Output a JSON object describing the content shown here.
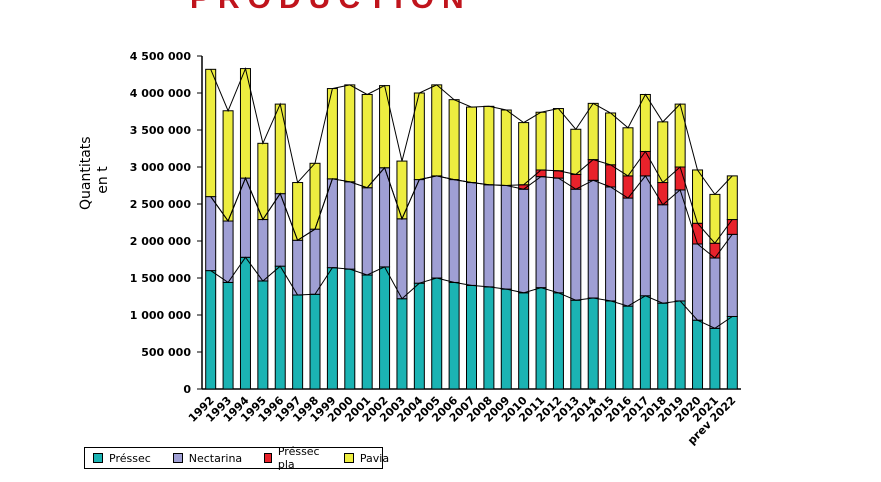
{
  "title_fragment": "PRODUCTION",
  "ylabel": "Quantitats\nen t",
  "colors": {
    "Préssec": "#1bb3b3",
    "Nectarina": "#9f9fd4",
    "Préssec pla": "#e8222b",
    "Pavia": "#eded40"
  },
  "chart_data": {
    "type": "bar",
    "stacked": true,
    "categories": [
      "1992",
      "1993",
      "1994",
      "1995",
      "1996",
      "1997",
      "1998",
      "1999",
      "2000",
      "2001",
      "2002",
      "2003",
      "2004",
      "2005",
      "2006",
      "2007",
      "2008",
      "2009",
      "2010",
      "2011",
      "2012",
      "2013",
      "2014",
      "2015",
      "2016",
      "2017",
      "2018",
      "2019",
      "2020",
      "2021",
      "prev 2022"
    ],
    "ylim": [
      0,
      4500000
    ],
    "yticks": [
      0,
      500000,
      1000000,
      1500000,
      2000000,
      2500000,
      3000000,
      3500000,
      4000000,
      4500000
    ],
    "ytick_labels": [
      "0",
      "500 000",
      "1 000 000",
      "1 500 000",
      "2 000 000",
      "2 500 000",
      "3 000 000",
      "3 500 000",
      "4 000 000",
      "4 500 000"
    ],
    "series": [
      {
        "name": "Préssec",
        "values": [
          1600000,
          1440000,
          1780000,
          1460000,
          1660000,
          1270000,
          1280000,
          1640000,
          1620000,
          1540000,
          1650000,
          1220000,
          1430000,
          1500000,
          1440000,
          1400000,
          1380000,
          1350000,
          1300000,
          1370000,
          1300000,
          1200000,
          1230000,
          1190000,
          1120000,
          1260000,
          1160000,
          1190000,
          930000,
          820000,
          980000
        ]
      },
      {
        "name": "Nectarina",
        "values": [
          1000000,
          830000,
          1070000,
          830000,
          980000,
          740000,
          880000,
          1200000,
          1180000,
          1180000,
          1340000,
          1080000,
          1400000,
          1380000,
          1390000,
          1390000,
          1380000,
          1400000,
          1400000,
          1500000,
          1550000,
          1500000,
          1590000,
          1540000,
          1460000,
          1620000,
          1330000,
          1500000,
          1030000,
          950000,
          1110000
        ]
      },
      {
        "name": "Préssec pla",
        "values": [
          0,
          0,
          0,
          0,
          0,
          0,
          0,
          0,
          0,
          0,
          0,
          0,
          0,
          0,
          0,
          0,
          0,
          0,
          60000,
          90000,
          100000,
          200000,
          280000,
          300000,
          300000,
          330000,
          300000,
          310000,
          280000,
          200000,
          200000
        ]
      },
      {
        "name": "Pavia",
        "values": [
          1720000,
          1490000,
          1480000,
          1030000,
          1210000,
          780000,
          890000,
          1220000,
          1310000,
          1260000,
          1110000,
          780000,
          1170000,
          1230000,
          1080000,
          1020000,
          1060000,
          1020000,
          840000,
          780000,
          840000,
          610000,
          760000,
          700000,
          650000,
          770000,
          820000,
          850000,
          720000,
          660000,
          590000
        ]
      }
    ],
    "legend": "bottom-left",
    "grid": false
  }
}
